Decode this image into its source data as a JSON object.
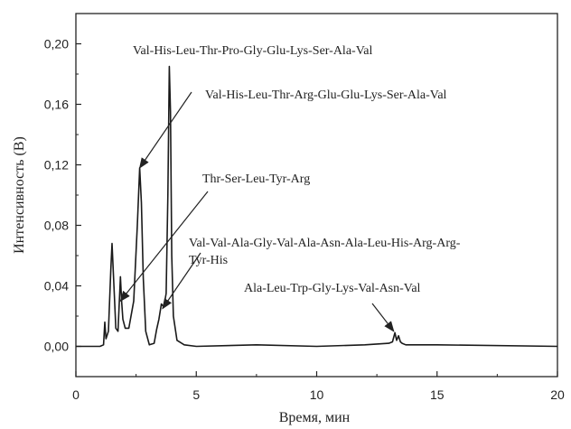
{
  "chart_data": {
    "type": "line",
    "xlabel": "Время, мин",
    "ylabel": "Интенсивность (В)",
    "xlim": [
      0,
      20
    ],
    "ylim": [
      -0.02,
      0.22
    ],
    "xticks": [
      0,
      5,
      10,
      15,
      20
    ],
    "xtick_labels": [
      "0",
      "5",
      "10",
      "15",
      "20"
    ],
    "yticks": [
      0.0,
      0.04,
      0.08,
      0.12,
      0.16,
      0.2
    ],
    "ytick_labels": [
      "0,00",
      "0,04",
      "0,08",
      "0,12",
      "0,16",
      "0,20"
    ],
    "grid": false,
    "series": [
      {
        "color": "#1a1a1a",
        "x": [
          0,
          1.0,
          1.15,
          1.2,
          1.25,
          1.35,
          1.45,
          1.5,
          1.58,
          1.66,
          1.75,
          1.85,
          1.9,
          1.95,
          2.05,
          2.2,
          2.4,
          2.55,
          2.65,
          2.72,
          2.8,
          2.9,
          3.05,
          3.25,
          3.35,
          3.45,
          3.55,
          3.65,
          3.75,
          3.82,
          3.88,
          3.93,
          3.98,
          4.05,
          4.2,
          4.5,
          5.0,
          7.5,
          10.0,
          12.0,
          13.0,
          13.15,
          13.25,
          13.32,
          13.4,
          13.48,
          13.55,
          13.7,
          14.0,
          15.0,
          20.0
        ],
        "y": [
          0.0,
          0.0,
          0.001,
          0.016,
          0.005,
          0.01,
          0.05,
          0.068,
          0.04,
          0.012,
          0.01,
          0.046,
          0.03,
          0.018,
          0.012,
          0.012,
          0.03,
          0.08,
          0.118,
          0.095,
          0.045,
          0.01,
          0.001,
          0.002,
          0.011,
          0.018,
          0.028,
          0.026,
          0.035,
          0.1,
          0.185,
          0.155,
          0.06,
          0.02,
          0.004,
          0.001,
          0.0,
          0.001,
          0.0,
          0.001,
          0.002,
          0.003,
          0.009,
          0.004,
          0.007,
          0.003,
          0.002,
          0.001,
          0.001,
          0.001,
          0.0
        ]
      }
    ],
    "annotations": [
      {
        "text": "Val-His-Leu-Thr-Pro-Gly-Glu-Lys-Ser-Ala-Val",
        "target": [
          3.9,
          0.185
        ]
      },
      {
        "text": "Val-His-Leu-Thr-Arg-Glu-Glu-Lys-Ser-Ala-Val",
        "target": [
          2.65,
          0.118
        ]
      },
      {
        "text": "Thr-Ser-Leu-Tyr-Arg",
        "target": [
          1.85,
          0.03
        ]
      },
      {
        "text": "Val-Val-Ala-Gly-Val-Ala-Asn-Ala-Leu-His-Arg-Arg-",
        "text2": "Tyr-His",
        "target": [
          3.6,
          0.025
        ]
      },
      {
        "text": "Ala-Leu-Trp-Gly-Lys-Val-Asn-Val",
        "target": [
          13.2,
          0.01
        ]
      }
    ]
  }
}
